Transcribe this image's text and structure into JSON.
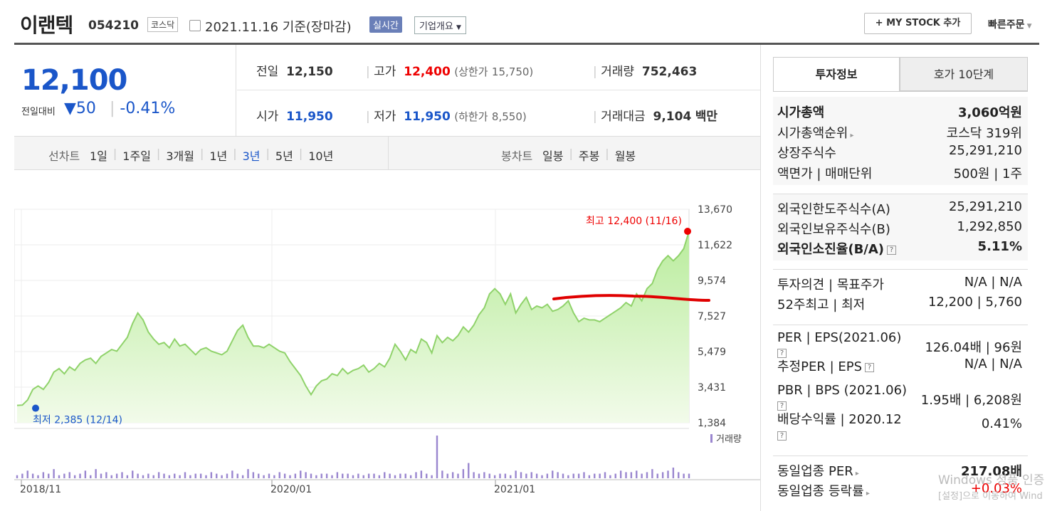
{
  "header": {
    "title": "이랜텍",
    "code": "054210",
    "market": "코스닥",
    "date": "2021.11.16 기준(장마감)",
    "live": "실시간",
    "corp": "기업개요",
    "mystock": "+ MY STOCK 추가",
    "quick": "빠른주문"
  },
  "quote": {
    "price": "12,100",
    "change_label": "전일대비",
    "change": "50",
    "change_pct": "-0.41%",
    "prev_label": "전일",
    "prev": "12,150",
    "high_label": "고가",
    "high": "12,400",
    "upper_label": "(상한가",
    "upper": "15,750)",
    "volume_label": "거래량",
    "volume": "752,463",
    "open_label": "시가",
    "open": "11,950",
    "low_label": "저가",
    "low": "11,950",
    "lower_label": "(하한가",
    "lower": "8,550)",
    "amount_label": "거래대금",
    "amount": "9,104",
    "amount_unit": "백만"
  },
  "periods": {
    "line_label": "선차트",
    "line": [
      "1일",
      "1주일",
      "3개월",
      "1년",
      "3년",
      "5년",
      "10년"
    ],
    "selected": "3년",
    "candle_label": "봉차트",
    "candle": [
      "일봉",
      "주봉",
      "월봉"
    ]
  },
  "tabs": [
    "투자정보",
    "호가 10단계"
  ],
  "invest": {
    "g1": [
      {
        "label": "시가총액",
        "value": "3,060억원"
      },
      {
        "label": "시가총액순위",
        "value": "코스닥 319위"
      },
      {
        "label": "상장주식수",
        "value": "25,291,210"
      },
      {
        "label": "액면가 | 매매단위",
        "value": "500원 | 1주"
      }
    ],
    "g2": [
      {
        "label": "외국인한도주식수(A)",
        "value": "25,291,210"
      },
      {
        "label": "외국인보유주식수(B)",
        "value": "1,292,850"
      },
      {
        "label": "외국인소진율(B/A)",
        "value": "5.11%"
      }
    ],
    "g3": [
      {
        "label": "투자의견 | 목표주가",
        "value": "N/A | N/A"
      },
      {
        "label": "52주최고 | 최저",
        "value": "12,200 | 5,760"
      }
    ],
    "g4": [
      {
        "label": "PER | EPS(2021.06)",
        "value": "126.04배 | 96원"
      },
      {
        "label": "추정PER | EPS",
        "value": "N/A | N/A"
      },
      {
        "label": "PBR | BPS (2021.06)",
        "value": "1.95배 | 6,208원"
      },
      {
        "label": "배당수익률 | 2020.12",
        "value": "0.41%"
      }
    ],
    "g5": [
      {
        "label": "동일업종 PER",
        "value": "217.08배"
      },
      {
        "label": "동일업종 등락률",
        "value": "+0.03%"
      }
    ]
  },
  "watermark": {
    "line1": "Windows 정품 인증",
    "line2": "[설정]으로 이동하여 Wind"
  },
  "chart_data": {
    "type": "area",
    "yticks": [
      "13,670",
      "11,622",
      "9,574",
      "7,527",
      "5,479",
      "3,431",
      "1,384"
    ],
    "ylim": [
      1384,
      13670
    ],
    "xticks": [
      "2018/11",
      "2020/01",
      "2021/01"
    ],
    "max_label": "최고 12,400 (11/16)",
    "min_label": "최저 2,385 (12/14)",
    "volume_label": "거래량",
    "color": "#8fd26a",
    "annotation_color": "#e00000",
    "values": [
      2385,
      2400,
      2700,
      3300,
      3500,
      3300,
      3700,
      4300,
      4500,
      4200,
      4600,
      4400,
      4800,
      5000,
      5100,
      4800,
      5200,
      5400,
      5600,
      5500,
      5900,
      6300,
      7100,
      7700,
      7300,
      6600,
      6200,
      5900,
      6000,
      5700,
      6200,
      5800,
      5900,
      5600,
      5300,
      5600,
      5700,
      5500,
      5400,
      5300,
      5500,
      6100,
      6700,
      7000,
      6300,
      5800,
      5800,
      5700,
      5900,
      5700,
      5500,
      5400,
      4900,
      4500,
      4100,
      3500,
      3000,
      3500,
      3800,
      3900,
      4200,
      4100,
      4500,
      4200,
      4400,
      4500,
      4700,
      4300,
      4500,
      4800,
      4600,
      5100,
      5900,
      5500,
      5000,
      5600,
      5400,
      6200,
      6000,
      5400,
      6400,
      6000,
      6300,
      6100,
      6400,
      6900,
      6600,
      7000,
      7600,
      8000,
      8800,
      9100,
      8800,
      8200,
      8800,
      7700,
      8200,
      8600,
      7900,
      8100,
      8000,
      8200,
      7800,
      7900,
      8100,
      8400,
      7700,
      7200,
      7400,
      7300,
      7300,
      7200,
      7400,
      7600,
      7800,
      8000,
      8300,
      8100,
      8800,
      8400,
      9100,
      9400,
      10200,
      10700,
      11000,
      10700,
      11000,
      11400,
      12400
    ],
    "volume": [
      2,
      3,
      5,
      3,
      2,
      4,
      3,
      6,
      2,
      3,
      4,
      2,
      3,
      5,
      2,
      6,
      3,
      4,
      2,
      3,
      4,
      2,
      5,
      3,
      2,
      3,
      2,
      4,
      3,
      2,
      3,
      2,
      4,
      2,
      3,
      3,
      2,
      4,
      3,
      2,
      3,
      5,
      3,
      2,
      6,
      4,
      3,
      2,
      3,
      2,
      4,
      3,
      2,
      3,
      5,
      4,
      3,
      2,
      3,
      3,
      2,
      4,
      3,
      3,
      2,
      3,
      2,
      3,
      3,
      2,
      4,
      3,
      2,
      3,
      3,
      2,
      4,
      5,
      3,
      2,
      28,
      5,
      3,
      4,
      3,
      6,
      10,
      4,
      3,
      4,
      3,
      2,
      3,
      3,
      2,
      5,
      4,
      3,
      4,
      3,
      2,
      3,
      5,
      4,
      3,
      2,
      3,
      3,
      4,
      2,
      3,
      3,
      4,
      2,
      3,
      5,
      4,
      4,
      5,
      3,
      4,
      6,
      3,
      4,
      5,
      7,
      4,
      3,
      3
    ]
  }
}
